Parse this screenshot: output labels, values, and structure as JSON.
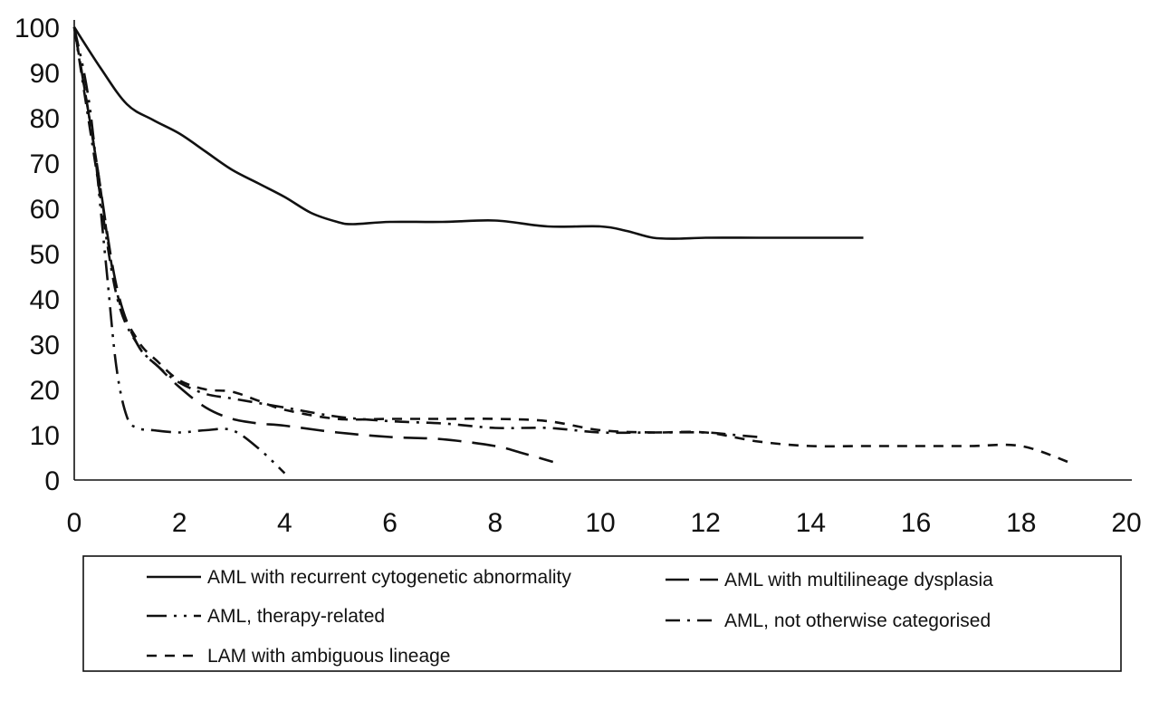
{
  "chart_data": {
    "type": "line",
    "xlim": [
      0,
      20
    ],
    "ylim": [
      0,
      100
    ],
    "x_ticks": [
      0,
      2,
      4,
      6,
      8,
      10,
      12,
      14,
      16,
      18,
      20
    ],
    "y_ticks": [
      0,
      10,
      20,
      30,
      40,
      50,
      60,
      70,
      80,
      90,
      100
    ],
    "grid": false,
    "legend_placement": "bottom",
    "series": [
      {
        "name": "AML with recurrent cytogenetic abnormality",
        "dash": "solid",
        "x": [
          0,
          0.5,
          1,
          1.5,
          2,
          2.5,
          3,
          3.5,
          4,
          4.5,
          5,
          5.3,
          6,
          7,
          8,
          9,
          10,
          10.5,
          11,
          11.5,
          12,
          13,
          14,
          15
        ],
        "y": [
          100,
          91,
          83,
          79.5,
          76.5,
          72.5,
          68.5,
          65.5,
          62.5,
          59,
          57,
          56.5,
          57,
          57,
          57.3,
          56,
          56,
          55,
          53.5,
          53.3,
          53.5,
          53.5,
          53.5,
          53.5
        ]
      },
      {
        "name": "AML with multilineage dysplasia",
        "dash": "long-dash",
        "x": [
          0,
          0.4,
          0.8,
          1.2,
          1.6,
          2,
          2.5,
          3,
          3.5,
          4,
          5,
          6,
          7,
          8,
          8.5,
          9.1
        ],
        "y": [
          100,
          72,
          43,
          30,
          25,
          20.5,
          16,
          13.5,
          12.5,
          12,
          10.5,
          9.5,
          9,
          7.5,
          6,
          4
        ]
      },
      {
        "name": "AML, therapy-related",
        "dash": "dash-dot-dot",
        "x": [
          0,
          0.3,
          0.6,
          0.8,
          1,
          1.2,
          1.5,
          2,
          2.5,
          3,
          3.5,
          4
        ],
        "y": [
          100,
          82,
          48,
          25,
          14,
          11.5,
          11,
          10.5,
          11,
          11,
          7,
          1.5
        ]
      },
      {
        "name": "AML, not otherwise categorised",
        "dash": "dash-dot",
        "x": [
          0,
          0.4,
          0.8,
          1.2,
          1.6,
          2,
          2.5,
          3,
          4,
          5,
          6,
          7,
          8,
          9,
          10,
          11,
          12,
          12.5,
          13
        ],
        "y": [
          100,
          70,
          41,
          30,
          25,
          21.5,
          19,
          18,
          16,
          14,
          13,
          12.5,
          11.5,
          11.5,
          10.5,
          10.5,
          10.5,
          10,
          9.5
        ]
      },
      {
        "name": "LAM with ambiguous lineage",
        "dash": "short-dash",
        "x": [
          0,
          0.4,
          0.8,
          1.2,
          1.6,
          2,
          2.5,
          3,
          3.5,
          4,
          5,
          6,
          7,
          8,
          9,
          10,
          11,
          12,
          13,
          14,
          15,
          16,
          17,
          18,
          19
        ],
        "y": [
          100,
          72,
          42,
          31,
          26,
          22,
          20,
          19.5,
          17.5,
          15.5,
          13.5,
          13.5,
          13.5,
          13.5,
          13,
          11,
          10.5,
          10.5,
          8.5,
          7.5,
          7.5,
          7.5,
          7.5,
          7.5,
          3.5
        ]
      }
    ]
  }
}
